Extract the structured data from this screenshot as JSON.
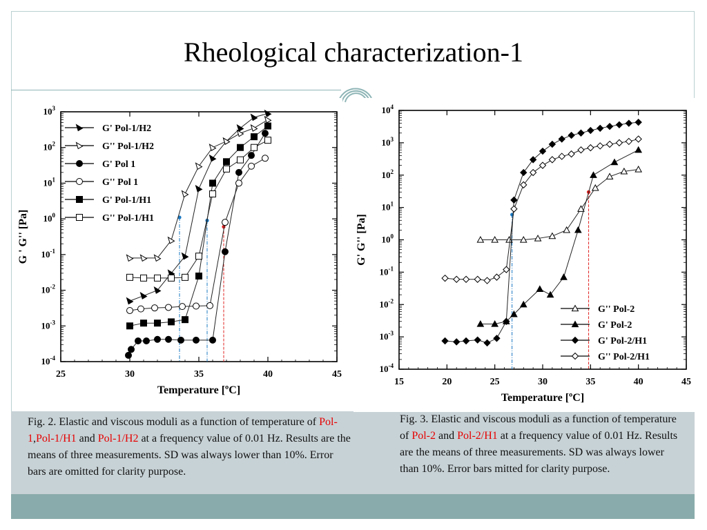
{
  "title": "Rheological characterization-1",
  "colors": {
    "accent": "#8aabab",
    "caption_bg": "#c7d2d6",
    "highlight_red": "#e60000",
    "marker_blue": "#1a78c2",
    "marker_red": "#e02020"
  },
  "caption1": {
    "pre": "Fig. 2. Elastic and viscous moduli as a function of temperature of ",
    "hl1": "Pol-1",
    "sep": ",",
    "hl2": "Pol-1/H1",
    "mid": " and ",
    "hl3": "Pol-1/H2",
    "post": " at a frequency value of 0.01 Hz. Results are the means of three measurements. SD was always lower than 10%. Error bars are omitted for clarity purpose."
  },
  "caption2": {
    "pre": "Fig. 3. Elastic and viscous moduli as a function of temperature of ",
    "hl1": "Pol-2",
    "mid": " and ",
    "hl2": "Pol-2/H1",
    "post": " at a frequency value of 0.01 Hz. Results are the means of three measurements. SD was always lower than 10%. Error bars  mitted for clarity purpose."
  },
  "chart_data": [
    {
      "type": "scatter",
      "xlabel": "Temperature [ºC]",
      "ylabel": "G ' G'' [Pa]",
      "xlim": [
        25,
        45
      ],
      "ylim": [
        0.0001,
        1000
      ],
      "yscale": "log",
      "xticks": [
        "25",
        "30",
        "35",
        "40",
        "45"
      ],
      "yticks": [
        {
          "base": "10",
          "exp": "3"
        },
        {
          "base": "10",
          "exp": "2"
        },
        {
          "base": "10",
          "exp": "1"
        },
        {
          "base": "10",
          "exp": "0"
        },
        {
          "base": "10",
          "exp": "-1"
        },
        {
          "base": "10",
          "exp": "-2"
        },
        {
          "base": "10",
          "exp": "-3"
        },
        {
          "base": "10",
          "exp": "-4"
        }
      ],
      "legend_position": "top-left",
      "series": [
        {
          "name": "G'  Pol-1/H2",
          "marker": "tri-right-filled",
          "x": [
            30,
            31,
            32,
            33,
            34,
            35,
            36,
            37,
            38,
            39,
            40
          ],
          "y": [
            0.005,
            0.007,
            0.01,
            0.03,
            0.09,
            7,
            50,
            150,
            350,
            700,
            900
          ]
        },
        {
          "name": "G''  Pol-1/H2",
          "marker": "tri-right-open",
          "x": [
            30,
            31,
            32,
            33,
            34,
            35,
            36,
            37,
            38,
            39,
            40
          ],
          "y": [
            0.08,
            0.08,
            0.08,
            0.25,
            5,
            30,
            100,
            150,
            250,
            350,
            600
          ]
        },
        {
          "name": "G' Pol 1",
          "marker": "circle-filled",
          "x": [
            29.9,
            30.1,
            30.6,
            31.2,
            32,
            32.8,
            33.7,
            34.8,
            36,
            36.9,
            37.9,
            38.8,
            39.8
          ],
          "y": [
            0.00015,
            0.00022,
            0.00038,
            0.00038,
            0.00042,
            0.00042,
            0.0004,
            0.0004,
            0.0004,
            0.12,
            20,
            60,
            250
          ]
        },
        {
          "name": "G'' Pol 1",
          "marker": "circle-open",
          "x": [
            30,
            30.8,
            31.8,
            32.8,
            33.8,
            34.8,
            35.8,
            36.9,
            37.9,
            38.8,
            39.8
          ],
          "y": [
            0.0027,
            0.003,
            0.0032,
            0.0033,
            0.0035,
            0.0036,
            0.0037,
            0.8,
            10,
            30,
            50
          ]
        },
        {
          "name": "G' Pol-1/H1",
          "marker": "square-filled",
          "x": [
            30,
            31,
            32,
            33,
            34,
            35,
            36,
            37,
            38,
            39,
            40
          ],
          "y": [
            0.001,
            0.0012,
            0.0012,
            0.0013,
            0.0015,
            0.025,
            10,
            40,
            100,
            200,
            400
          ]
        },
        {
          "name": "G'' Pol-1/H1",
          "marker": "square-open",
          "x": [
            30,
            31,
            32,
            33,
            34,
            35,
            36,
            37,
            38,
            39,
            40
          ],
          "y": [
            0.023,
            0.022,
            0.022,
            0.022,
            0.023,
            0.09,
            5,
            25,
            45,
            100,
            160
          ]
        }
      ],
      "reference_lines": [
        {
          "x": 33.6,
          "y": 1.1,
          "color": "blue"
        },
        {
          "x": 35.6,
          "y": 0.9,
          "color": "blue"
        },
        {
          "x": 36.8,
          "y": 0.6,
          "color": "red"
        }
      ]
    },
    {
      "type": "scatter",
      "xlabel": "Temperature [ºC]",
      "ylabel": "G' G'' [Pa]",
      "xlim": [
        15,
        45
      ],
      "ylim": [
        0.0001,
        10000
      ],
      "yscale": "log",
      "xticks": [
        "15",
        "20",
        "25",
        "30",
        "35",
        "40",
        "45"
      ],
      "yticks": [
        {
          "base": "10",
          "exp": "4"
        },
        {
          "base": "10",
          "exp": "3"
        },
        {
          "base": "10",
          "exp": "2"
        },
        {
          "base": "10",
          "exp": "1"
        },
        {
          "base": "10",
          "exp": "0"
        },
        {
          "base": "10",
          "exp": "-1"
        },
        {
          "base": "10",
          "exp": "-2"
        },
        {
          "base": "10",
          "exp": "-3"
        },
        {
          "base": "10",
          "exp": "-4"
        }
      ],
      "legend_position": "bottom-right",
      "series": [
        {
          "name": "G'' Pol-2",
          "marker": "tri-up-open",
          "x": [
            23.5,
            25,
            26.5,
            28,
            29.5,
            31,
            32.5,
            34,
            35.5,
            37,
            38.5,
            40
          ],
          "y": [
            1,
            1,
            1,
            1,
            1.1,
            1.3,
            2,
            9,
            40,
            90,
            130,
            150
          ]
        },
        {
          "name": "G'  Pol-2",
          "marker": "tri-up-filled",
          "x": [
            23.5,
            25,
            26.2,
            27,
            28,
            29.7,
            30.8,
            32.2,
            33.7,
            35.3,
            37.5,
            40
          ],
          "y": [
            0.0025,
            0.0025,
            0.003,
            0.005,
            0.01,
            0.03,
            0.02,
            0.07,
            2,
            100,
            250,
            600
          ]
        },
        {
          "name": "G'  Pol-2/H1",
          "marker": "diamond-filled",
          "x": [
            19.8,
            21,
            22,
            23.2,
            24.2,
            25.2,
            26.2,
            27,
            28,
            29,
            30,
            31,
            32,
            33,
            34,
            35,
            36,
            37,
            38,
            39,
            40
          ],
          "y": [
            0.00075,
            0.0007,
            0.00075,
            0.0008,
            0.00065,
            0.0009,
            0.003,
            17,
            120,
            300,
            550,
            900,
            1300,
            1700,
            2000,
            2400,
            2800,
            3200,
            3600,
            4000,
            4300
          ]
        },
        {
          "name": "G''  Pol-2/H1",
          "marker": "diamond-open",
          "x": [
            19.8,
            21,
            22,
            23.2,
            24.2,
            25.2,
            26.2,
            27,
            28,
            29,
            30,
            31,
            32,
            33,
            34,
            35,
            36,
            37,
            38,
            39,
            40
          ],
          "y": [
            0.065,
            0.06,
            0.06,
            0.06,
            0.055,
            0.07,
            0.12,
            9,
            50,
            120,
            200,
            300,
            380,
            450,
            600,
            700,
            800,
            900,
            1000,
            1100,
            1300
          ]
        }
      ],
      "reference_lines": [
        {
          "x": 26.8,
          "y": 6,
          "color": "blue"
        },
        {
          "x": 34.8,
          "y": 30,
          "color": "red"
        }
      ]
    }
  ]
}
